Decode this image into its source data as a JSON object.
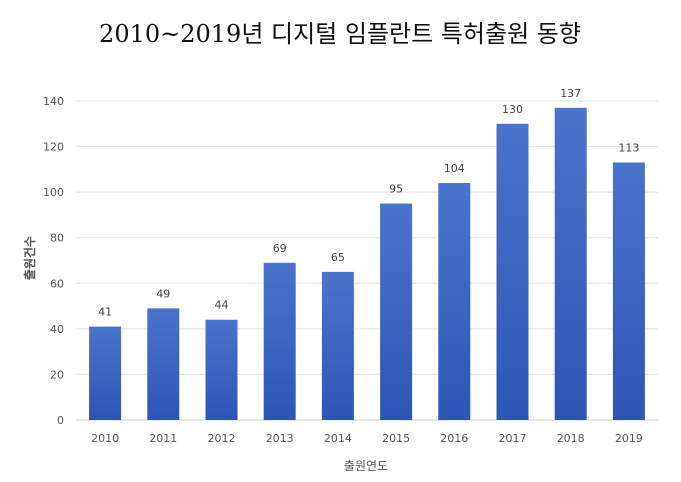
{
  "chart_data": {
    "type": "bar",
    "title": "2010~2019년 디지털 임플란트 특허출원 동향",
    "xlabel": "출원연도",
    "ylabel": "출원건수",
    "categories": [
      "2010",
      "2011",
      "2012",
      "2013",
      "2014",
      "2015",
      "2016",
      "2017",
      "2018",
      "2019"
    ],
    "values": [
      41,
      49,
      44,
      69,
      65,
      95,
      104,
      130,
      137,
      113
    ],
    "ylim": [
      0,
      140
    ],
    "yticks": [
      0,
      20,
      40,
      60,
      80,
      100,
      120,
      140
    ],
    "grid": true,
    "data_labels": true,
    "bar_color_top": "#4a73cc",
    "bar_color_bottom": "#2c56b5"
  }
}
